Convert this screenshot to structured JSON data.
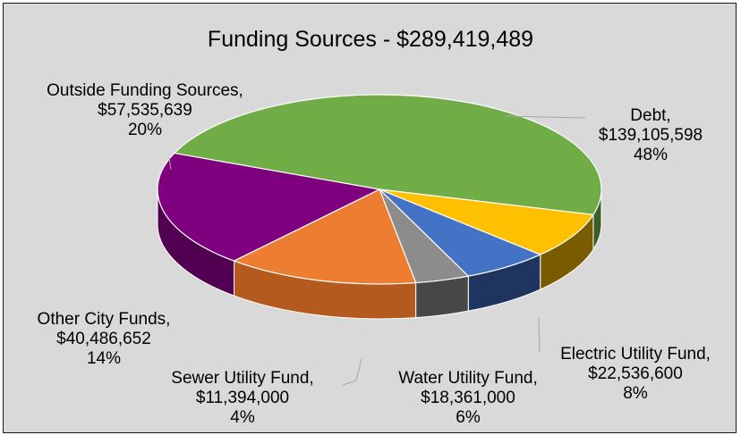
{
  "chart_data": {
    "type": "pie",
    "title": "Funding Sources - $289,419,489",
    "slices": [
      {
        "name": "Debt,",
        "amount": "$139,105,598",
        "percent": "48%",
        "value": 139105598,
        "color": "#70ad47",
        "side_color": "#3b5e26"
      },
      {
        "name": "Electric Utility Fund,",
        "amount": "$22,536,600",
        "percent": "8%",
        "value": 22536600,
        "color": "#ffc000",
        "side_color": "#7a5c00"
      },
      {
        "name": "Water Utility Fund,",
        "amount": "$18,361,000",
        "percent": "6%",
        "value": 18361000,
        "color": "#4472c4",
        "side_color": "#1f3560"
      },
      {
        "name": "Sewer Utility Fund,",
        "amount": "$11,394,000",
        "percent": "4%",
        "value": 11394000,
        "color": "#8c8c8c",
        "side_color": "#474747"
      },
      {
        "name": "Other City Funds,",
        "amount": "$40,486,652",
        "percent": "14%",
        "value": 40486652,
        "color": "#ed7d31",
        "side_color": "#b45a1f"
      },
      {
        "name": "Outside Funding Sources,",
        "amount": "$57,535,639",
        "percent": "20%",
        "value": 57535639,
        "color": "#7f007f",
        "side_color": "#520052"
      }
    ],
    "legend": "none",
    "data_labels": "outside-with-leader-lines"
  }
}
